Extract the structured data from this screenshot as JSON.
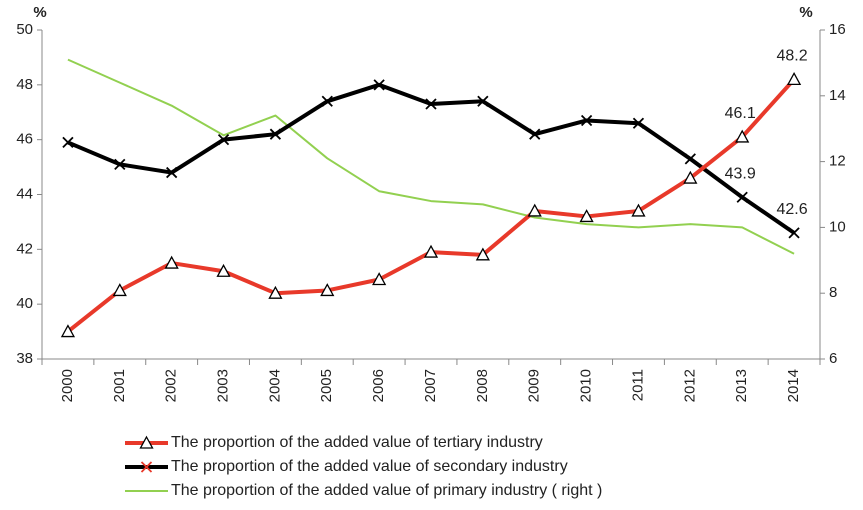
{
  "chart_data": {
    "type": "line",
    "y_unit_label": "%",
    "y2_unit_label": "%",
    "categories": [
      "2000",
      "2001",
      "2002",
      "2003",
      "2004",
      "2005",
      "2006",
      "2007",
      "2008",
      "2009",
      "2010",
      "2011",
      "2012",
      "2013",
      "2014"
    ],
    "ylim": [
      38,
      50
    ],
    "yticks": [
      38,
      40,
      42,
      44,
      46,
      48,
      50
    ],
    "y2lim": [
      6,
      16
    ],
    "y2ticks": [
      6,
      8,
      10,
      12,
      14,
      16
    ],
    "series": [
      {
        "name": "The proportion of the added value of tertiary industry",
        "color": "#e8392a",
        "marker": "triangle",
        "values": [
          39.0,
          40.5,
          41.5,
          41.2,
          40.4,
          40.5,
          40.9,
          41.9,
          41.8,
          43.4,
          43.2,
          43.4,
          44.6,
          46.1,
          48.2
        ],
        "value_labels": [
          null,
          null,
          null,
          null,
          null,
          null,
          null,
          null,
          null,
          null,
          null,
          null,
          null,
          "46.1",
          "48.2"
        ]
      },
      {
        "name": "The proportion of the added value of secondary industry",
        "color": "#000000",
        "marker": "x",
        "values": [
          45.9,
          45.1,
          44.8,
          46.0,
          46.2,
          47.4,
          48.0,
          47.3,
          47.4,
          46.2,
          46.7,
          46.6,
          45.3,
          43.9,
          42.6
        ],
        "value_labels": [
          null,
          null,
          null,
          null,
          null,
          null,
          null,
          null,
          null,
          null,
          null,
          null,
          null,
          "43.9",
          "42.6"
        ]
      },
      {
        "name": "The proportion of the added value of primary industry ( right )",
        "color": "#92d050",
        "axis": "y2",
        "values": [
          15.1,
          14.4,
          13.7,
          12.8,
          13.4,
          12.1,
          11.1,
          10.8,
          10.7,
          10.3,
          10.1,
          10.0,
          10.1,
          10.0,
          9.2
        ]
      }
    ]
  }
}
